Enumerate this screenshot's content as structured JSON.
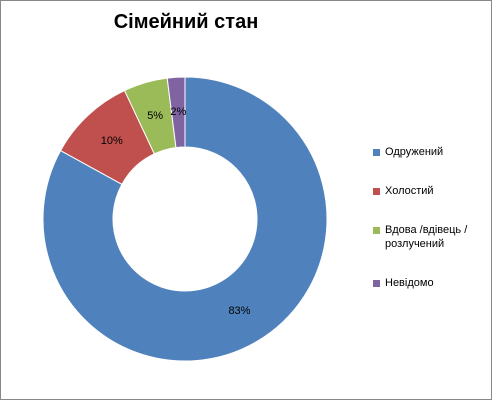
{
  "chart_data": {
    "type": "donut",
    "title": "Сімейний стан",
    "categories": [
      "Одружений",
      "Холостий",
      "Вдова /вдівець / розлучений",
      "Невідомо"
    ],
    "values": [
      83,
      10,
      5,
      2
    ],
    "value_labels": [
      "83%",
      "10%",
      "5%",
      "2%"
    ],
    "colors": [
      "#4f81bd",
      "#c0504d",
      "#9bbb59",
      "#8064a2"
    ],
    "legend": "right"
  }
}
